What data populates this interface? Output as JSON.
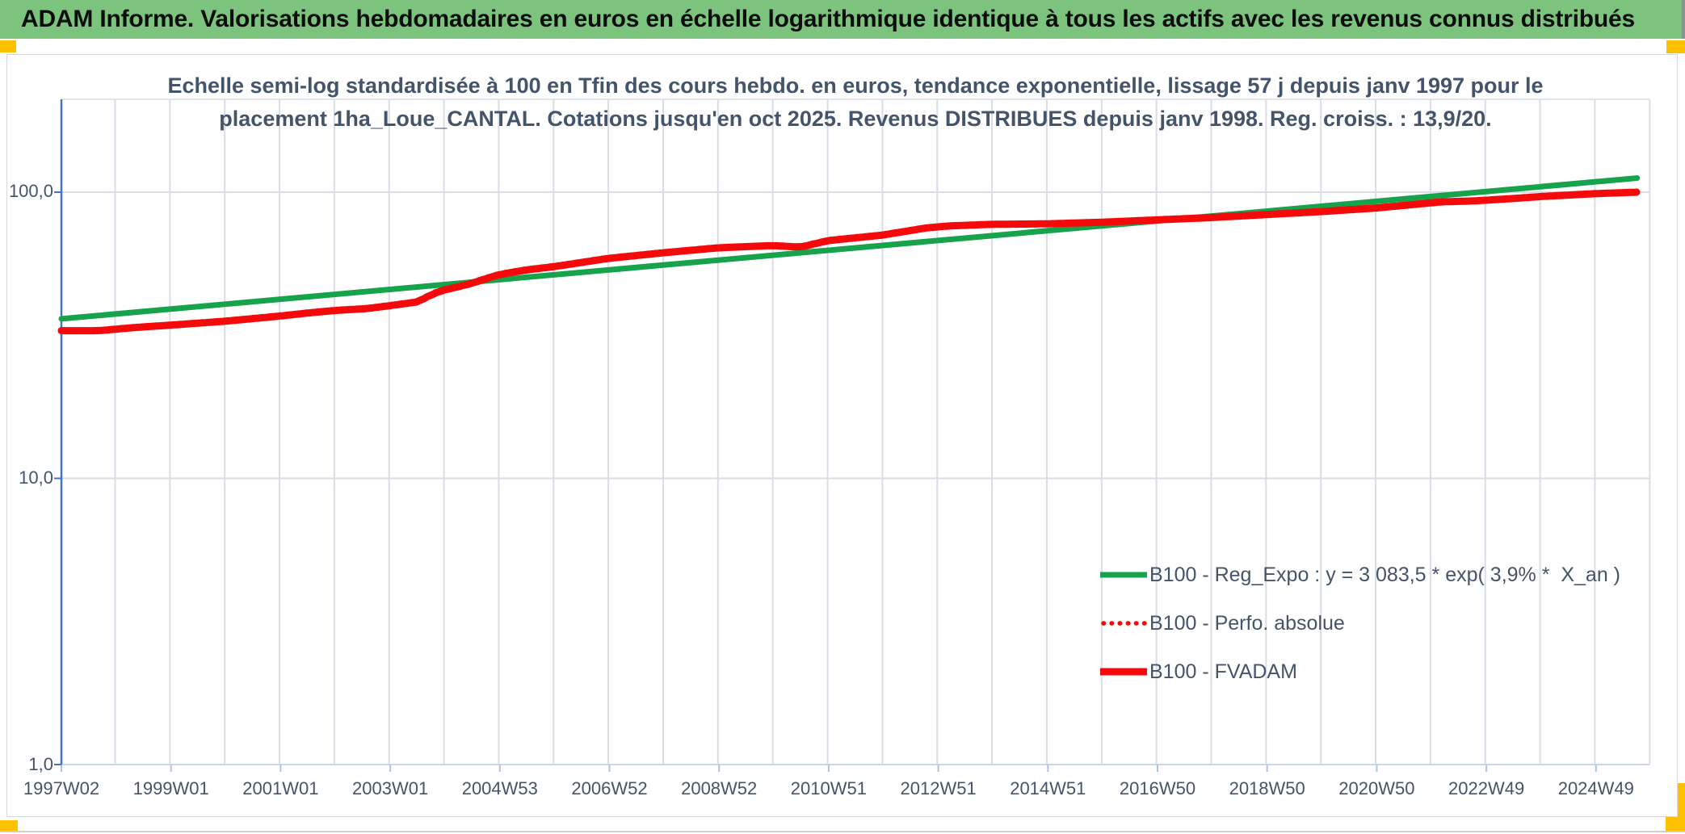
{
  "banner": {
    "title": "ADAM Informe. Valorisations hebdomadaires en euros en échelle logarithmique identique à tous les actifs avec les revenus connus distribués"
  },
  "chart": {
    "subtitle_line1": "Echelle semi-log standardisée à 100 en Tfin des cours hebdo. en euros, tendance exponentielle, lissage 57 j depuis janv 1997 pour le",
    "subtitle_line2": "placement 1ha_Loue_CANTAL. Cotations jusqu'en oct 2025. Revenus DISTRIBUES depuis janv 1998. Reg. croiss. : 13,9/20."
  },
  "chart_data": {
    "type": "line",
    "title": "Echelle semi-log standardisée à 100 en Tfin des cours hebdo. en euros, tendance exponentielle, lissage 57 j depuis janv 1997 pour le placement 1ha_Loue_CANTAL. Cotations jusqu'en oct 2025. Revenus DISTRIBUES depuis janv 1998. Reg. croiss. : 13,9/20.",
    "x_axis": {
      "labels": [
        "1997W02",
        "1999W01",
        "2001W01",
        "2003W01",
        "2004W53",
        "2006W52",
        "2008W52",
        "2010W51",
        "2012W51",
        "2014W51",
        "2016W50",
        "2018W50",
        "2020W50",
        "2022W49",
        "2024W49"
      ],
      "label_interval_years": 2,
      "start_year": 1997.02,
      "end_year": 2025.77,
      "gridlines": "yearly"
    },
    "y_axis": {
      "scale": "log10",
      "ticks": [
        {
          "label": "100,0",
          "value": 100
        },
        {
          "label": "10,0",
          "value": 10
        },
        {
          "label": "1,0",
          "value": 1
        }
      ],
      "range": [
        1,
        200
      ]
    },
    "legend_position": "inside-right-lower",
    "series": [
      {
        "name": "B100 - Reg_Expo : y = 3 083,5 * exp( 3,9% *  X_an )",
        "color": "#17a34c",
        "style": "solid",
        "stroke_width": 7,
        "points": [
          [
            1997.02,
            36.1
          ],
          [
            2025.77,
            112.0
          ]
        ]
      },
      {
        "name": "B100 - Perfo. absolue",
        "color": "#f40a0a",
        "style": "dotted",
        "stroke_width": 5,
        "coincident_with": "B100 - FVADAM"
      },
      {
        "name": "B100 - FVADAM",
        "color": "#f40a0a",
        "style": "solid",
        "stroke_width": 9,
        "stepped": true,
        "points": [
          [
            1997.02,
            32.8
          ],
          [
            1997.7,
            32.8
          ],
          [
            1998.3,
            33.6
          ],
          [
            1999.0,
            34.3
          ],
          [
            2000.0,
            35.4
          ],
          [
            2001.0,
            36.9
          ],
          [
            2001.5,
            37.8
          ],
          [
            2002.0,
            38.6
          ],
          [
            2002.6,
            39.2
          ],
          [
            2003.0,
            40.1
          ],
          [
            2003.5,
            41.3
          ],
          [
            2003.9,
            45.0
          ],
          [
            2004.45,
            47.7
          ],
          [
            2005.0,
            51.5
          ],
          [
            2005.5,
            53.5
          ],
          [
            2006.0,
            54.9
          ],
          [
            2007.0,
            58.7
          ],
          [
            2008.0,
            61.4
          ],
          [
            2009.0,
            63.9
          ],
          [
            2010.0,
            65.1
          ],
          [
            2010.5,
            64.2
          ],
          [
            2011.0,
            67.7
          ],
          [
            2012.0,
            70.8
          ],
          [
            2012.8,
            75.0
          ],
          [
            2013.2,
            76.2
          ],
          [
            2014.0,
            77.2
          ],
          [
            2015.0,
            77.5
          ],
          [
            2016.0,
            78.5
          ],
          [
            2017.0,
            80.0
          ],
          [
            2018.0,
            81.5
          ],
          [
            2019.0,
            83.5
          ],
          [
            2020.0,
            85.5
          ],
          [
            2021.0,
            88.0
          ],
          [
            2022.2,
            92.5
          ],
          [
            2022.8,
            93.2
          ],
          [
            2023.5,
            95.0
          ],
          [
            2024.0,
            96.5
          ],
          [
            2025.0,
            98.8
          ],
          [
            2025.77,
            100.0
          ]
        ]
      }
    ]
  },
  "colors": {
    "banner_green": "#7cc47e",
    "corner_orange": "#ffc000",
    "text_dark_blue_gray": "#44546a",
    "axis_blue": "#4472c4",
    "gridline": "#d9dde5",
    "trend_green": "#17a34c",
    "series_red": "#f40a0a"
  }
}
